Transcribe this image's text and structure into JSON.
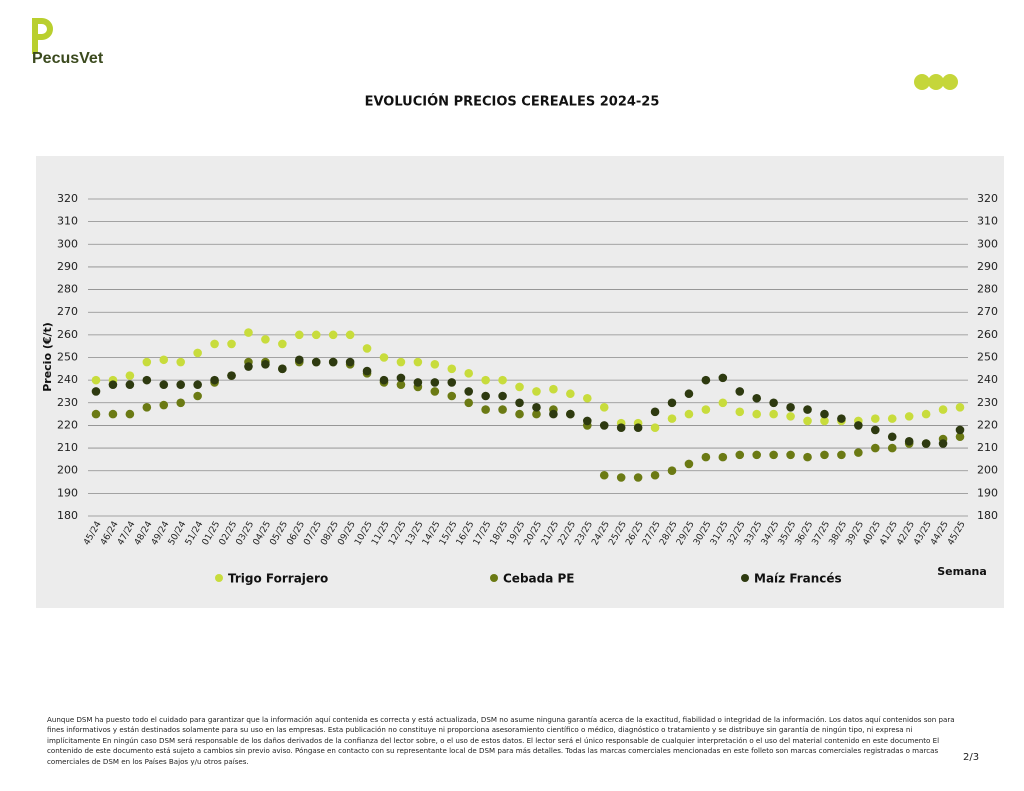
{
  "header": {
    "brand": "PecusVet"
  },
  "chart_data": {
    "type": "scatter",
    "title": "EVOLUCIÓN PRECIOS CEREALES 2024-25",
    "y_label": "Precio (€/t)",
    "x_label": "Semana",
    "categories": [
      "45/24",
      "46/24",
      "47/24",
      "48/24",
      "49/24",
      "50/24",
      "51/24",
      "01/25",
      "02/25",
      "03/25",
      "04/25",
      "05/25",
      "06/25",
      "07/25",
      "08/25",
      "09/25",
      "10/25",
      "11/25",
      "12/25",
      "13/25",
      "14/25",
      "15/25",
      "16/25",
      "17/25",
      "18/25",
      "19/25",
      "20/25",
      "21/25",
      "22/25",
      "23/25",
      "24/25",
      "25/25",
      "26/25",
      "27/25",
      "28/25",
      "29/25",
      "30/25",
      "31/25",
      "32/25",
      "33/25",
      "34/25",
      "35/25",
      "36/25",
      "37/25",
      "38/25",
      "39/25",
      "40/25",
      "41/25",
      "42/25",
      "43/25",
      "44/25",
      "45/25"
    ],
    "series": [
      {
        "name": "Trigo Forrajero",
        "color": "#c8dc3c",
        "values": [
          240,
          240,
          242,
          248,
          249,
          248,
          252,
          256,
          256,
          261,
          258,
          256,
          260,
          260,
          260,
          260,
          254,
          250,
          248,
          248,
          247,
          245,
          243,
          240,
          240,
          237,
          235,
          236,
          234,
          232,
          228,
          221,
          221,
          219,
          223,
          225,
          227,
          230,
          226,
          225,
          225,
          224,
          222,
          222,
          222,
          222,
          223,
          223,
          224,
          225,
          227,
          228
        ]
      },
      {
        "name": "Cebada PE",
        "color": "#6b7a14",
        "values": [
          225,
          225,
          225,
          228,
          229,
          230,
          233,
          239,
          242,
          248,
          248,
          245,
          248,
          248,
          248,
          247,
          243,
          239,
          238,
          237,
          235,
          233,
          230,
          227,
          227,
          225,
          225,
          227,
          225,
          220,
          198,
          197,
          197,
          198,
          200,
          203,
          206,
          206,
          207,
          207,
          207,
          207,
          206,
          207,
          207,
          208,
          210,
          210,
          212,
          212,
          214,
          215
        ]
      },
      {
        "name": "Maíz Francés",
        "color": "#2e3a10",
        "values": [
          235,
          238,
          238,
          240,
          238,
          238,
          238,
          240,
          242,
          246,
          247,
          245,
          249,
          248,
          248,
          248,
          244,
          240,
          241,
          239,
          239,
          239,
          235,
          233,
          233,
          230,
          228,
          225,
          225,
          222,
          220,
          219,
          219,
          226,
          230,
          234,
          240,
          241,
          235,
          232,
          230,
          228,
          227,
          225,
          223,
          220,
          218,
          215,
          213,
          212,
          212,
          218
        ]
      }
    ],
    "ylim": [
      180,
      320
    ],
    "yticks": [
      180,
      190,
      200,
      210,
      220,
      230,
      240,
      250,
      260,
      270,
      280,
      290,
      300,
      310,
      320
    ],
    "grid": true
  },
  "footer": {
    "disclaimer": "Aunque DSM ha puesto todo el cuidado para garantizar que la información aquí contenida es correcta y está actualizada, DSM no asume ninguna garantía acerca de la exactitud, fiabilidad o integridad de la información. Los datos aquí contenidos son para fines informativos y están destinados solamente para su uso en las empresas. Esta publicación no constituye ni proporciona asesoramiento científico o médico, diagnóstico o tratamiento y se distribuye sin garantía de ningún tipo, ni expresa ni implícitamente En ningún caso DSM será responsable de los daños derivados de la confianza del lector sobre, o el uso de estos datos. El lector será el único responsable de cualquier interpretación o el uso del material contenido en este documento El contenido de este documento está sujeto a cambios sin previo aviso. Póngase en contacto con su representante local de DSM para más detalles. Todas las marcas comerciales mencionadas en este folleto son marcas comerciales registradas o marcas comerciales de DSM en los Países Bajos y/u otros países.",
    "page": "2/3"
  }
}
